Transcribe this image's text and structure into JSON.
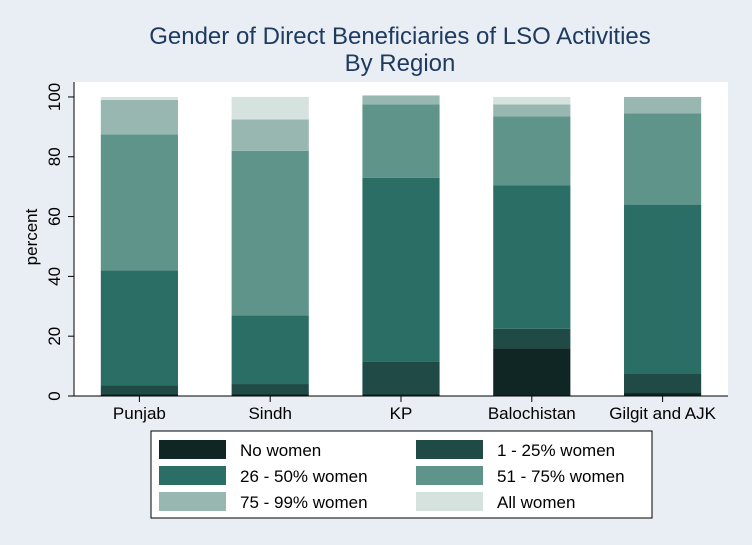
{
  "chart_data": {
    "type": "bar",
    "stacked": true,
    "title": "Gender of Direct Beneficiaries of LSO Activities",
    "subtitle": "By Region",
    "xlabel": "",
    "ylabel": "percent",
    "ylim": [
      0,
      105
    ],
    "yticks": [
      0,
      20,
      40,
      60,
      80,
      100
    ],
    "grid": false,
    "legend_position": "bottom",
    "categories": [
      "Punjab",
      "Sindh",
      "KP",
      "Balochistan",
      "Gilgit and AJK"
    ],
    "series": [
      {
        "name": "No women",
        "color": "#0f2624",
        "values": [
          0.5,
          0.5,
          0.5,
          16.0,
          1.0
        ]
      },
      {
        "name": "1 - 25% women",
        "color": "#1f4a46",
        "values": [
          3.0,
          3.5,
          11.0,
          6.5,
          6.5
        ]
      },
      {
        "name": "26 - 50% women",
        "color": "#2b6e66",
        "values": [
          38.5,
          23.0,
          61.5,
          48.0,
          56.5
        ]
      },
      {
        "name": "51 - 75% women",
        "color": "#5e948a",
        "values": [
          45.5,
          55.0,
          24.5,
          23.0,
          30.5
        ]
      },
      {
        "name": "75 - 99% women",
        "color": "#97b7b0",
        "values": [
          11.5,
          10.5,
          3.0,
          4.0,
          5.5
        ]
      },
      {
        "name": "All women",
        "color": "#d5e2de",
        "values": [
          1.0,
          7.5,
          0.0,
          2.5,
          0.0
        ]
      }
    ]
  }
}
